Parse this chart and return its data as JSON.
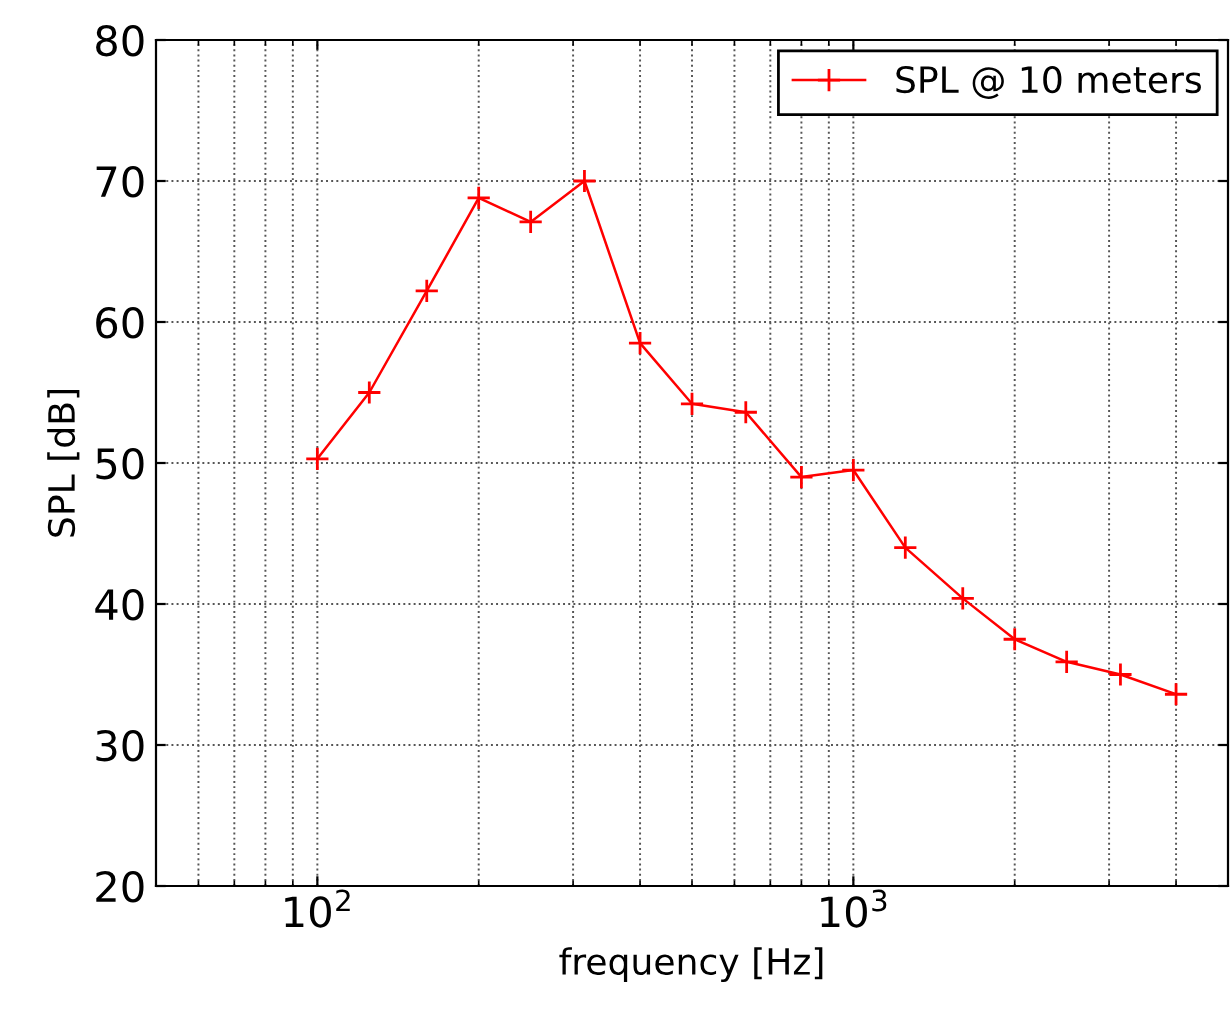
{
  "chart_data": {
    "type": "line",
    "xlabel": "frequency [Hz]",
    "ylabel": "SPL [dB]",
    "x": [
      100,
      125,
      160,
      200,
      250,
      315,
      400,
      500,
      630,
      800,
      1000,
      1250,
      1600,
      2000,
      2500,
      3150,
      4000
    ],
    "series": [
      {
        "name": "SPL @ 10 meters",
        "color": "#ff0000",
        "values": [
          50.3,
          55,
          62.2,
          68.8,
          67.1,
          70,
          58.5,
          54.2,
          53.6,
          49,
          49.5,
          44,
          40.4,
          37.5,
          35.9,
          35,
          33.6
        ]
      }
    ],
    "log": "x",
    "xlim": [
      50,
      5000
    ],
    "xticks": [
      {
        "value": 100,
        "label": "10$^{2}$"
      },
      {
        "value": 1000,
        "label": "10$^{3}$"
      }
    ],
    "ylim": [
      20,
      80
    ],
    "yticks": [
      20,
      30,
      40,
      50,
      60,
      70,
      80
    ],
    "grid": true,
    "legend": "top right",
    "marker": "cross",
    "line_style": "solid"
  }
}
